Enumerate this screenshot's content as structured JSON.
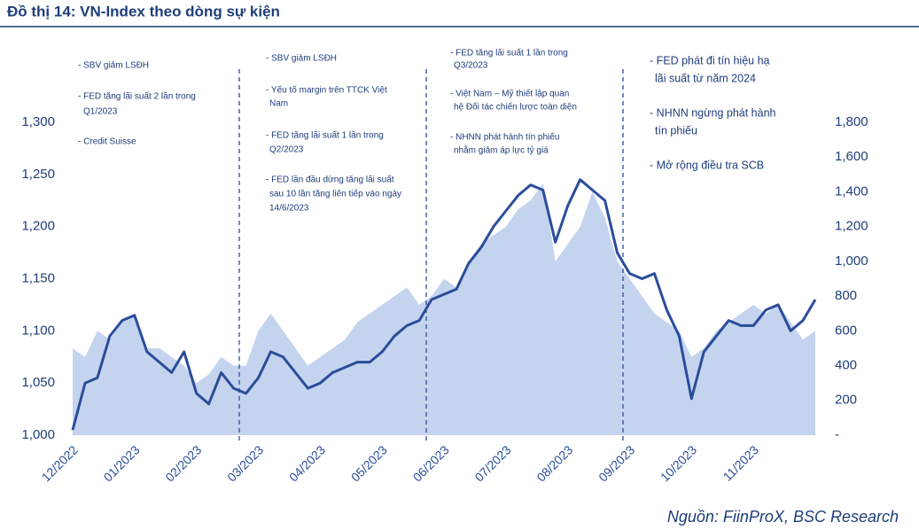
{
  "chart_data": {
    "type": "line",
    "title": "Đồ thị 14: VN-Index theo dòng sự kiện",
    "source": "Nguồn: FiinProX, BSC Research",
    "annotations": [
      [
        "- SBV giảm LSĐH",
        "- FED tăng lãi suất 2 lần trong",
        "Q1/2023",
        "- Credit Suisse"
      ],
      [
        "- SBV giảm LSĐH",
        "- Yếu tố margin trên TTCK Việt",
        "Nam",
        "- FED tăng lãi suất 1 lần trong",
        "Q2/2023",
        "- FED lần đầu dừng tăng lãi suất",
        "sau 10 lần tăng liên tiếp vào ngày",
        "14/6/2023"
      ],
      [
        "- FED tăng lãi suất 1 lần trong",
        "Q3/2023",
        "- Việt Nam – Mỹ thiết lập quan",
        "hệ Đối tác chiến lược toàn diện",
        "- NHNN phát hành tín phiếu",
        "nhằm giảm áp lực tỷ giá"
      ],
      [
        "- FED phát đi tín hiệu hạ",
        "lãi suất từ năm 2024",
        "- NHNN ngừng phát hành",
        "tín phiếu",
        "- Mở rộng điều tra SCB"
      ]
    ],
    "categories": [
      "12/2022",
      null,
      null,
      null,
      null,
      "01/2023",
      null,
      null,
      null,
      null,
      "02/2023",
      null,
      null,
      null,
      null,
      "03/2023",
      null,
      null,
      null,
      null,
      "04/2023",
      null,
      null,
      null,
      null,
      "05/2023",
      null,
      null,
      null,
      null,
      "06/2023",
      null,
      null,
      null,
      null,
      "07/2023",
      null,
      null,
      null,
      null,
      "08/2023",
      null,
      null,
      null,
      null,
      "09/2023",
      null,
      null,
      null,
      null,
      "10/2023",
      null,
      null,
      null,
      null,
      "11/2023",
      null,
      null,
      null,
      null,
      null
    ],
    "series": [
      {
        "color": "#2a4d9b",
        "values": [
          1005,
          1050,
          1055,
          1095,
          1110,
          1115,
          1080,
          1070,
          1060,
          1080,
          1040,
          1030,
          1060,
          1045,
          1040,
          1055,
          1080,
          1075,
          1060,
          1045,
          1050,
          1060,
          1065,
          1070,
          1070,
          1080,
          1095,
          1105,
          1110,
          1130,
          1135,
          1140,
          1165,
          1180,
          1200,
          1215,
          1230,
          1240,
          1235,
          1185,
          1220,
          1245,
          1235,
          1225,
          1175,
          1155,
          1150,
          1155,
          1120,
          1095,
          1035,
          1080,
          1095,
          1110,
          1105,
          1105,
          1120,
          1125,
          1100,
          1110,
          1130
        ]
      },
      {
        "color": "#c5d4ee",
        "axis": "y2",
        "values": [
          500,
          450,
          600,
          550,
          650,
          700,
          500,
          500,
          450,
          400,
          300,
          350,
          450,
          400,
          400,
          600,
          700,
          600,
          500,
          400,
          450,
          500,
          550,
          650,
          700,
          750,
          800,
          850,
          750,
          800,
          900,
          850,
          1000,
          1100,
          1150,
          1200,
          1300,
          1350,
          1450,
          1000,
          1100,
          1200,
          1400,
          1250,
          1000,
          900,
          800,
          700,
          650,
          600,
          450,
          500,
          600,
          650,
          700,
          750,
          700,
          750,
          650,
          550,
          600
        ]
      }
    ],
    "ylim": [
      1000,
      1300
    ],
    "yticks": [
      {
        "value": 1000,
        "label": "1,000"
      },
      {
        "value": 1050,
        "label": "1,050"
      },
      {
        "value": 1100,
        "label": "1,100"
      },
      {
        "value": 1150,
        "label": "1,150"
      },
      {
        "value": 1200,
        "label": "1,200"
      },
      {
        "value": 1250,
        "label": "1,250"
      },
      {
        "value": 1300,
        "label": "1,300"
      }
    ],
    "y2lim": [
      0,
      1800
    ],
    "y2ticks": [
      {
        "value": 0,
        "label": "-"
      },
      200,
      400,
      600,
      800,
      {
        "value": 1000,
        "label": "1,000"
      },
      {
        "value": 1200,
        "label": "1,200"
      },
      {
        "value": 1400,
        "label": "1,400"
      },
      {
        "value": 1600,
        "label": "1,600"
      },
      {
        "value": 1800,
        "label": "1,800"
      }
    ]
  }
}
